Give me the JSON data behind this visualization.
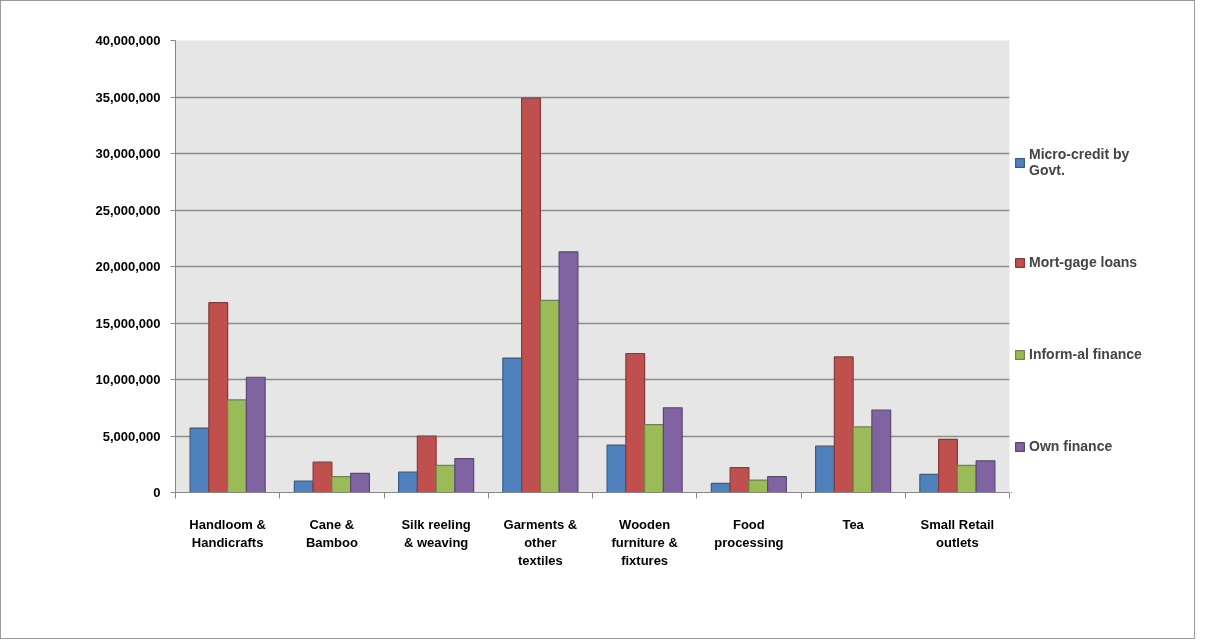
{
  "chart_data": {
    "type": "bar",
    "categories": [
      "Handloom & Handicrafts",
      "Cane & Bamboo",
      "Silk reeling & weaving",
      "Garments & other textiles",
      "Wooden furniture & fixtures",
      "Food processing",
      "Tea",
      "Small Retail outlets"
    ],
    "series": [
      {
        "name": "Micro-credit by Govt.",
        "color": "#4f81bd",
        "values": [
          5700000,
          1000000,
          1800000,
          11900000,
          4200000,
          800000,
          4100000,
          1600000
        ]
      },
      {
        "name": "Mort-gage loans",
        "color": "#c0504d",
        "values": [
          16800000,
          2700000,
          5000000,
          34900000,
          12300000,
          2200000,
          12000000,
          4700000
        ]
      },
      {
        "name": "Inform-al finance",
        "color": "#9bbb59",
        "values": [
          8200000,
          1400000,
          2400000,
          17000000,
          6000000,
          1100000,
          5800000,
          2400000
        ]
      },
      {
        "name": "Own finance",
        "color": "#8064a2",
        "values": [
          10200000,
          1700000,
          3000000,
          21300000,
          7500000,
          1400000,
          7300000,
          2800000
        ]
      }
    ],
    "ylim": [
      0,
      40000000
    ],
    "yticks": [
      {
        "value": 0,
        "label": "0"
      },
      {
        "value": 5000000,
        "label": "5,000,000"
      },
      {
        "value": 10000000,
        "label": "10,000,000"
      },
      {
        "value": 15000000,
        "label": "15,000,000"
      },
      {
        "value": 20000000,
        "label": "20,000,000"
      },
      {
        "value": 25000000,
        "label": "25,000,000"
      },
      {
        "value": 30000000,
        "label": "30,000,000"
      },
      {
        "value": 35000000,
        "label": "35,000,000"
      },
      {
        "value": 40000000,
        "label": "40,000,000"
      }
    ],
    "grid": "y",
    "legend": "right"
  }
}
